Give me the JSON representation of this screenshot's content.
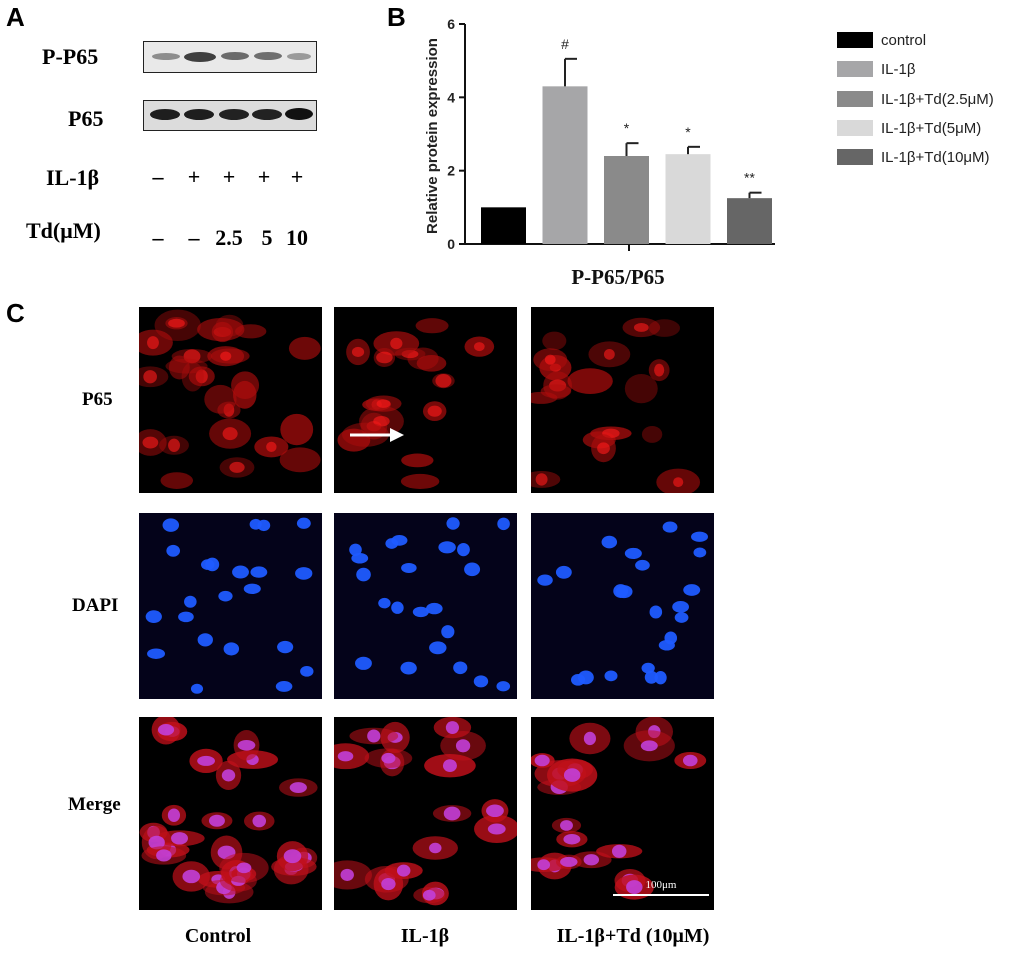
{
  "panels": {
    "a": "A",
    "b": "B",
    "c": "C"
  },
  "western_blot": {
    "labels": [
      "P-P65",
      "P65"
    ],
    "treatments": [
      {
        "name": "IL-1β",
        "values": [
          "–",
          "+",
          "+",
          "+",
          "+"
        ]
      },
      {
        "name": "Td(μM)",
        "values": [
          "–",
          "–",
          "2.5",
          "5",
          "10"
        ]
      }
    ]
  },
  "chart_data": {
    "type": "bar",
    "xlabel": "P-P65/P65",
    "ylabel": "Relative protein expression",
    "ylim": [
      0,
      6
    ],
    "yticks": [
      "0",
      "2",
      "4",
      "6"
    ],
    "series": [
      {
        "name": "control",
        "value": 1.0,
        "error": 0,
        "annotation": "",
        "color": "#000000"
      },
      {
        "name": "IL-1β",
        "value": 4.3,
        "error": 0.75,
        "annotation": "#",
        "color": "#a6a6a8"
      },
      {
        "name": "IL-1β+Td(2.5μM)",
        "value": 2.4,
        "error": 0.35,
        "annotation": "*",
        "color": "#8a8a8a"
      },
      {
        "name": "IL-1β+Td(5μM)",
        "value": 2.45,
        "error": 0.2,
        "annotation": "*",
        "color": "#d9d9d9"
      },
      {
        "name": "IL-1β+Td(10μM)",
        "value": 1.25,
        "error": 0.15,
        "annotation": "**",
        "color": "#666666"
      }
    ],
    "legend_position": "top-right"
  },
  "microscopy": {
    "rows": [
      "P65",
      "DAPI",
      "Merge"
    ],
    "columns": [
      "Control",
      "IL-1β",
      "IL-1β+Td (10μM)"
    ],
    "scale_bar": "100μm"
  }
}
